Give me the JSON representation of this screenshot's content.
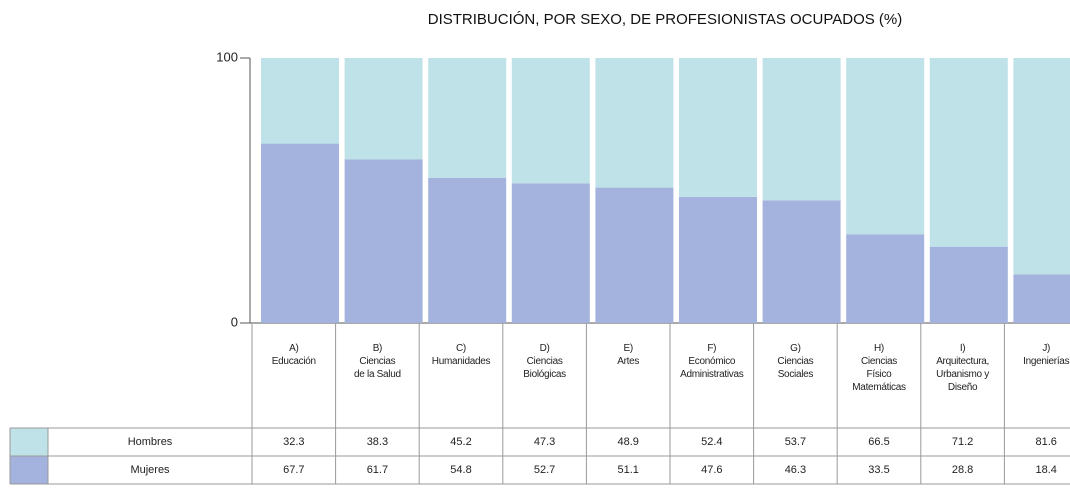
{
  "chart_data": {
    "type": "stacked_bar",
    "title": "DISTRIBUCIÓN, POR SEXO, DE PROFESIONISTAS OCUPADOS (%)",
    "categories": [
      "A)\nEducación",
      "B)\nCiencias\nde la Salud",
      "C)\nHumanidades",
      "D)\nCiencias\nBiológicas",
      "E)\nArtes",
      "F)\nEconómico\nAdministrativas",
      "G)\nCiencias\nSociales",
      "H)\nCiencias\nFísico\nMatemáticas",
      "I)\nArquitectura,\nUrbanismo y\nDiseño",
      "J)\nIngenierías"
    ],
    "series": [
      {
        "name": "Mujeres",
        "color": "#a3b3dd",
        "values": [
          67.7,
          61.7,
          54.8,
          52.7,
          51.1,
          47.6,
          46.3,
          33.5,
          28.8,
          18.4
        ]
      },
      {
        "name": "Hombres",
        "color": "#bfe2e8",
        "values": [
          32.3,
          38.3,
          45.2,
          47.3,
          48.9,
          52.4,
          53.7,
          66.5,
          71.2,
          81.6
        ]
      }
    ],
    "ylim": [
      0,
      100
    ],
    "yticks": [
      0,
      100
    ]
  }
}
